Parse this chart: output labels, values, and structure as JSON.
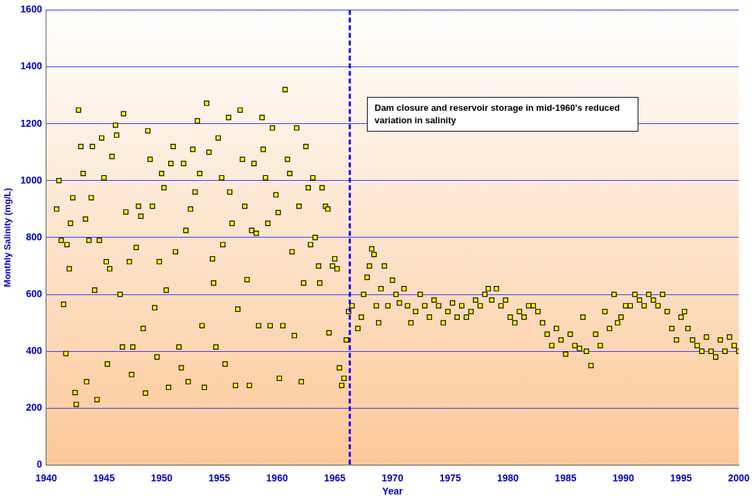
{
  "chart_data": {
    "type": "scatter",
    "xlabel": "Year",
    "ylabel": "Monthly Salinity (mg/L)",
    "x": [
      1940.9,
      1941.1,
      1941.3,
      1941.5,
      1941.7,
      1941.8,
      1942.0,
      1942.1,
      1942.3,
      1942.5,
      1942.6,
      1942.8,
      1943.0,
      1943.2,
      1943.4,
      1943.5,
      1943.7,
      1943.9,
      1944.0,
      1944.2,
      1944.4,
      1944.6,
      1944.8,
      1945.0,
      1945.2,
      1945.3,
      1945.5,
      1945.7,
      1946.0,
      1946.1,
      1946.4,
      1946.6,
      1946.7,
      1946.9,
      1947.2,
      1947.4,
      1947.5,
      1947.8,
      1948.0,
      1948.2,
      1948.4,
      1948.6,
      1948.8,
      1949.0,
      1949.2,
      1949.4,
      1949.6,
      1949.8,
      1950.0,
      1950.2,
      1950.4,
      1950.6,
      1950.8,
      1951.0,
      1951.2,
      1951.5,
      1951.7,
      1951.9,
      1952.1,
      1952.3,
      1952.5,
      1952.7,
      1952.9,
      1953.1,
      1953.3,
      1953.5,
      1953.7,
      1953.9,
      1954.1,
      1954.4,
      1954.5,
      1954.7,
      1954.9,
      1955.2,
      1955.3,
      1955.5,
      1955.8,
      1955.9,
      1956.1,
      1956.4,
      1956.6,
      1956.8,
      1957.0,
      1957.2,
      1957.4,
      1957.6,
      1957.8,
      1958.0,
      1958.2,
      1958.4,
      1958.7,
      1958.8,
      1959.0,
      1959.2,
      1959.4,
      1959.6,
      1959.9,
      1960.1,
      1960.2,
      1960.5,
      1960.7,
      1960.9,
      1961.1,
      1961.3,
      1961.5,
      1961.7,
      1961.9,
      1962.1,
      1962.3,
      1962.5,
      1962.7,
      1962.9,
      1963.1,
      1963.3,
      1963.6,
      1963.7,
      1963.9,
      1964.2,
      1964.4,
      1964.5,
      1964.8,
      1965.0,
      1965.2,
      1965.4,
      1965.6,
      1965.8,
      1966.0,
      1966.2,
      1966.5,
      1967.0,
      1967.3,
      1967.5,
      1967.8,
      1968.0,
      1968.2,
      1968.4,
      1968.6,
      1968.8,
      1969.0,
      1969.3,
      1969.6,
      1970.0,
      1970.3,
      1970.6,
      1971.0,
      1971.3,
      1971.6,
      1972.0,
      1972.4,
      1972.8,
      1973.2,
      1973.6,
      1974.0,
      1974.4,
      1974.8,
      1975.2,
      1975.6,
      1976.0,
      1976.4,
      1976.8,
      1977.2,
      1977.6,
      1978.0,
      1978.3,
      1978.6,
      1979.0,
      1979.4,
      1979.8,
      1980.2,
      1980.6,
      1981.0,
      1981.4,
      1981.8,
      1982.2,
      1982.6,
      1983.0,
      1983.4,
      1983.8,
      1984.2,
      1984.6,
      1985.0,
      1985.4,
      1985.8,
      1986.2,
      1986.5,
      1986.8,
      1987.2,
      1987.6,
      1988.0,
      1988.4,
      1988.8,
      1989.2,
      1989.5,
      1989.8,
      1990.2,
      1990.6,
      1991.0,
      1991.4,
      1991.8,
      1992.2,
      1992.6,
      1993.0,
      1993.4,
      1993.8,
      1994.2,
      1994.6,
      1995.0,
      1995.3,
      1995.6,
      1996.0,
      1996.4,
      1996.8,
      1997.2,
      1997.6,
      1998.0,
      1998.4,
      1998.8,
      1999.2,
      1999.6,
      2000.0
    ],
    "values": [
      900,
      1000,
      790,
      565,
      392,
      775,
      690,
      850,
      940,
      255,
      213,
      1248,
      1120,
      1025,
      865,
      293,
      790,
      940,
      1120,
      615,
      230,
      790,
      1150,
      1010,
      715,
      355,
      690,
      1085,
      1195,
      1160,
      600,
      415,
      1235,
      890,
      715,
      318,
      415,
      765,
      910,
      875,
      480,
      253,
      1175,
      1075,
      910,
      553,
      380,
      715,
      1025,
      975,
      615,
      273,
      1060,
      1120,
      750,
      415,
      342,
      1060,
      825,
      293,
      900,
      1110,
      960,
      1210,
      1025,
      490,
      273,
      1272,
      1100,
      725,
      640,
      415,
      1150,
      1010,
      775,
      355,
      1222,
      960,
      850,
      280,
      548,
      1248,
      1075,
      910,
      652,
      280,
      825,
      1060,
      815,
      490,
      1222,
      1110,
      1010,
      850,
      490,
      1185,
      950,
      888,
      305,
      490,
      1320,
      1075,
      1025,
      750,
      455,
      1185,
      910,
      293,
      640,
      1120,
      975,
      775,
      1010,
      800,
      700,
      640,
      975,
      910,
      900,
      465,
      700,
      725,
      690,
      342,
      280,
      305,
      440,
      540,
      560,
      480,
      520,
      600,
      660,
      700,
      760,
      740,
      560,
      500,
      620,
      700,
      560,
      650,
      600,
      570,
      620,
      560,
      500,
      540,
      600,
      560,
      520,
      580,
      560,
      500,
      540,
      570,
      520,
      560,
      520,
      540,
      580,
      560,
      600,
      620,
      580,
      620,
      560,
      580,
      520,
      500,
      540,
      520,
      560,
      560,
      540,
      500,
      460,
      420,
      480,
      440,
      390,
      460,
      420,
      410,
      520,
      400,
      350,
      460,
      420,
      540,
      480,
      600,
      500,
      520,
      560,
      560,
      600,
      580,
      560,
      600,
      580,
      560,
      600,
      540,
      480,
      440,
      520,
      540,
      480,
      440,
      420,
      400,
      450,
      400,
      380,
      440,
      400,
      450,
      420,
      400
    ],
    "color": "#ffff00",
    "marker": "square",
    "xlim": [
      1940,
      2000
    ],
    "xticks": [
      1940,
      1945,
      1950,
      1955,
      1960,
      1965,
      1970,
      1975,
      1980,
      1985,
      1990,
      1995,
      2000
    ],
    "ylim": [
      0,
      1600
    ],
    "yticks": [
      0,
      200,
      400,
      600,
      800,
      1000,
      1200,
      1400,
      1600
    ],
    "grid": "y",
    "ref_lines": [
      {
        "axis": "x",
        "value": 1966.3,
        "color": "#0000ff",
        "line_style": "dashed"
      }
    ],
    "annotations": [
      "Dam closure and reservoir storage in mid-1960's reduced variation in salinity"
    ]
  }
}
